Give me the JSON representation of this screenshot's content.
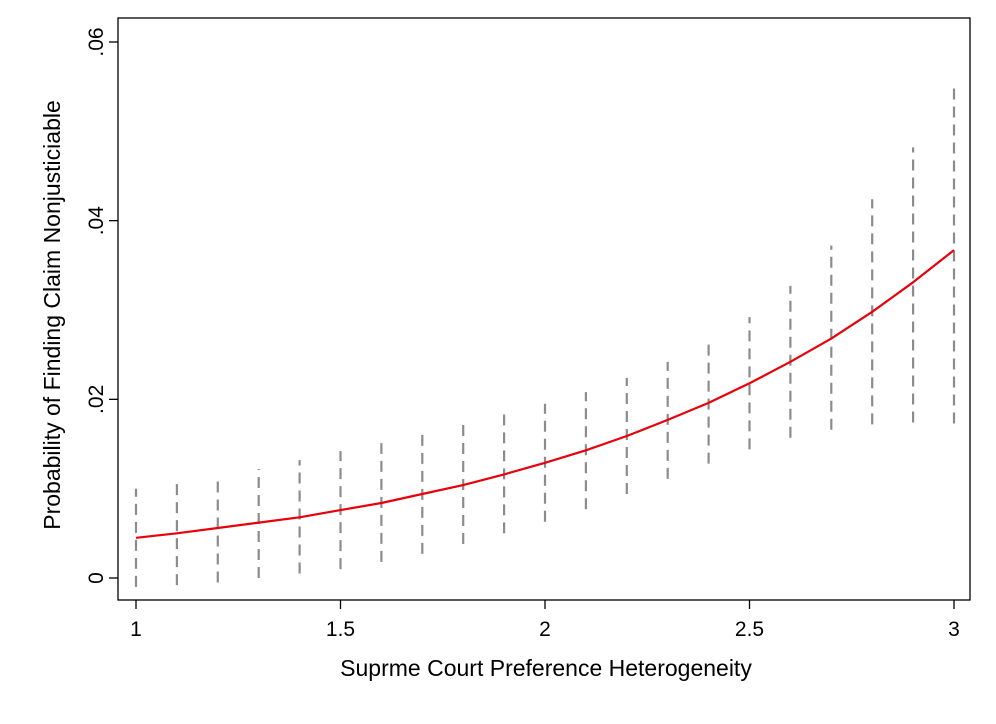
{
  "chart_data": {
    "type": "line",
    "title": "",
    "xlabel": "Suprme Court Preference Heterogeneity",
    "ylabel": "Probability of Finding Claim Nonjusticiable",
    "xlim": [
      1,
      3
    ],
    "ylim": [
      0,
      0.06
    ],
    "x_ticks": [
      {
        "value": 1,
        "label": "1"
      },
      {
        "value": 1.5,
        "label": "1.5"
      },
      {
        "value": 2,
        "label": "2"
      },
      {
        "value": 2.5,
        "label": "2.5"
      },
      {
        "value": 3,
        "label": "3"
      }
    ],
    "y_ticks": [
      {
        "value": 0,
        "label": "0"
      },
      {
        "value": 0.02,
        "label": ".02"
      },
      {
        "value": 0.04,
        "label": ".04"
      },
      {
        "value": 0.06,
        "label": ".06"
      }
    ],
    "grid": false,
    "legend": "none",
    "series": [
      {
        "kind": "line",
        "color": "#e8000b",
        "x": [
          1.0,
          1.1,
          1.2,
          1.3,
          1.4,
          1.5,
          1.6,
          1.7,
          1.8,
          1.9,
          2.0,
          2.1,
          2.2,
          2.3,
          2.4,
          2.5,
          2.6,
          2.7,
          2.8,
          2.9,
          3.0
        ],
        "y": [
          0.0045,
          0.005,
          0.0056,
          0.0062,
          0.0068,
          0.0076,
          0.0084,
          0.0094,
          0.0104,
          0.0116,
          0.0129,
          0.0143,
          0.0159,
          0.0177,
          0.0196,
          0.0218,
          0.0242,
          0.0268,
          0.0298,
          0.0331,
          0.0367
        ]
      },
      {
        "kind": "interval",
        "color": "#8c8c8c",
        "x": [
          1.0,
          1.1,
          1.2,
          1.3,
          1.4,
          1.5,
          1.6,
          1.7,
          1.8,
          1.9,
          2.0,
          2.1,
          2.2,
          2.3,
          2.4,
          2.5,
          2.6,
          2.7,
          2.8,
          2.9,
          3.0
        ],
        "lower": [
          -0.001,
          -0.0008,
          -0.0005,
          0.0,
          0.0005,
          0.001,
          0.0018,
          0.0027,
          0.0038,
          0.005,
          0.0063,
          0.0077,
          0.0094,
          0.0111,
          0.0128,
          0.0144,
          0.0157,
          0.0166,
          0.0172,
          0.0174,
          0.0173
        ],
        "upper": [
          0.01,
          0.0106,
          0.011,
          0.0122,
          0.0132,
          0.0142,
          0.0151,
          0.0161,
          0.0172,
          0.0183,
          0.0195,
          0.0208,
          0.0224,
          0.0242,
          0.0265,
          0.0292,
          0.0327,
          0.0372,
          0.0424,
          0.0482,
          0.0552
        ]
      }
    ]
  }
}
